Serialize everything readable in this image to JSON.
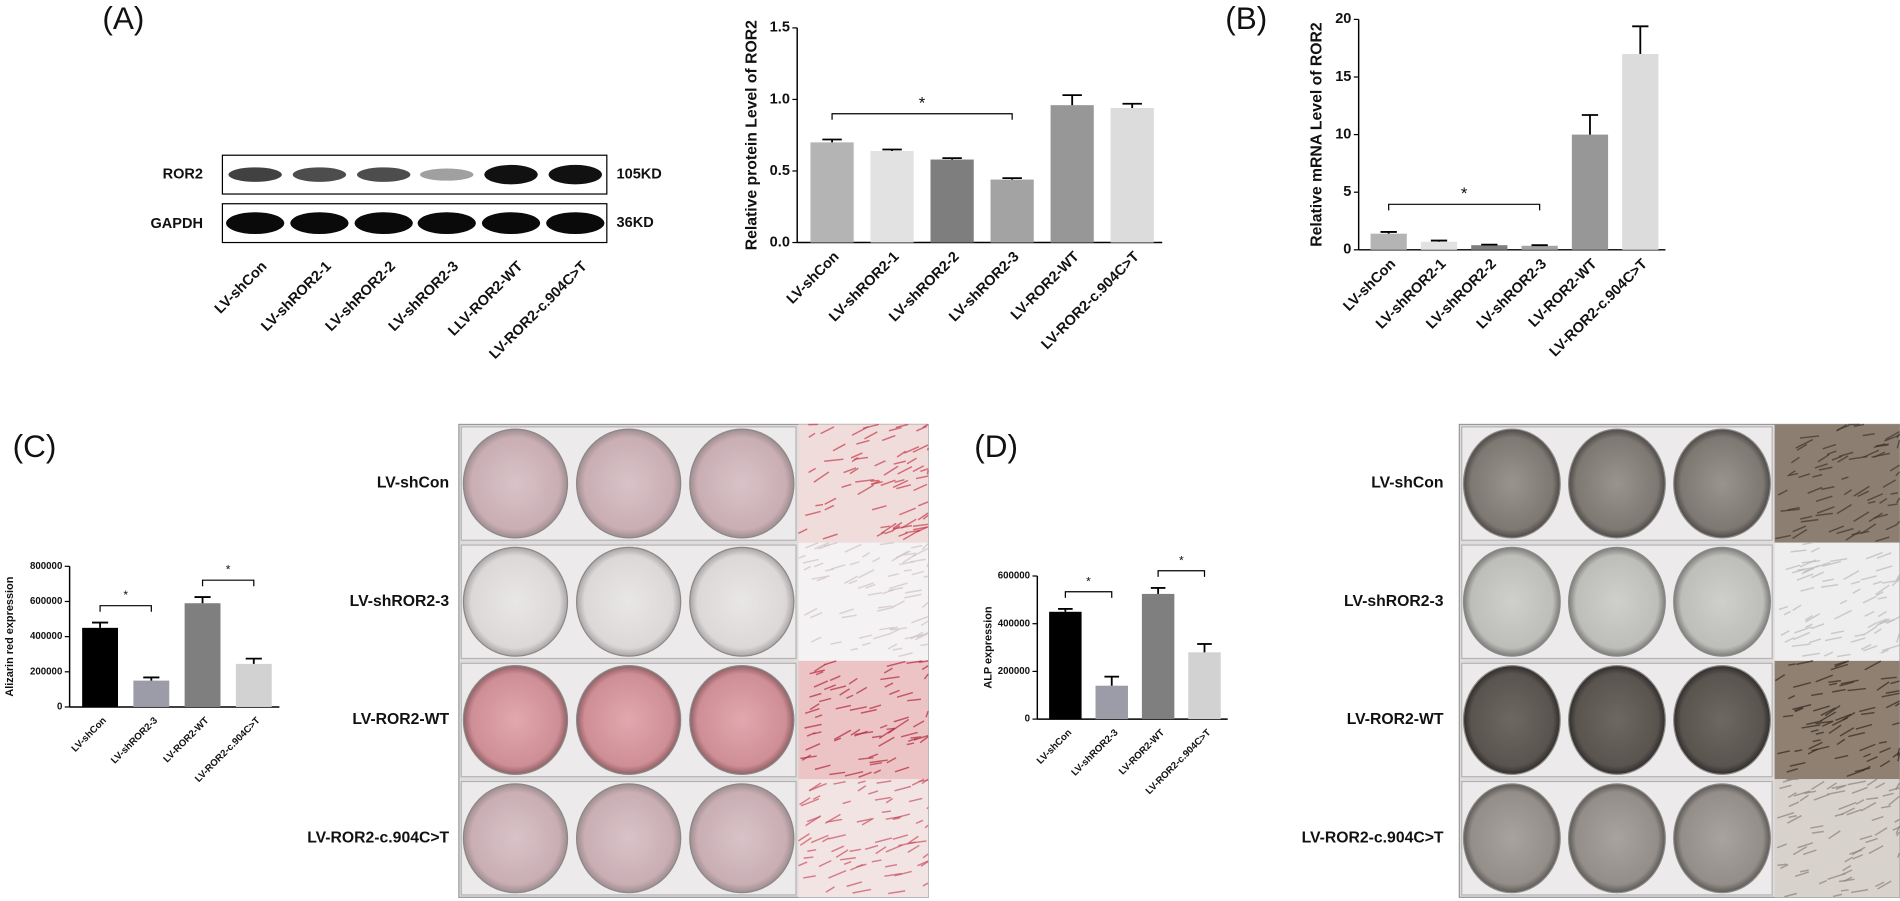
{
  "panels": [
    "(A)",
    "(B)",
    "(C)",
    "(D)"
  ],
  "blot": {
    "rows": [
      "ROR2",
      "GAPDH"
    ],
    "sizes": [
      "105KD",
      "36KD"
    ],
    "lanes": [
      "LV-shCon",
      "LV-shROR2-1",
      "LV-shROR2-2",
      "LV-shROR2-3",
      "LLV-ROR2-WT",
      "LV-ROR2-c.904C>T"
    ]
  },
  "plate_c": {
    "rows": [
      "LV-shCon",
      "LV-shROR2-3",
      "LV-ROR2-WT",
      "LV-ROR2-c.904C>T"
    ]
  },
  "plate_d": {
    "rows": [
      "LV-shCon",
      "LV-shROR2-3",
      "LV-ROR2-WT",
      "LV-ROR2-c.904C>T"
    ]
  },
  "chart_data": [
    {
      "type": "bar",
      "y_label": "Relative protein Level of ROR2",
      "categories": [
        "LV-shCon",
        "LV-shROR2-1",
        "LV-shROR2-2",
        "LV-shROR2-3",
        "LV-ROR2-WT",
        "LV-ROR2-c.904C>T"
      ],
      "values": [
        0.7,
        0.64,
        0.58,
        0.44,
        0.96,
        0.94
      ],
      "errors": [
        0.02,
        0.01,
        0.01,
        0.01,
        0.07,
        0.03
      ],
      "colors": [
        "#b4b4b4",
        "#e2e2e2",
        "#7e7e7e",
        "#a3a3a3",
        "#979797",
        "#dcdcdc"
      ],
      "ylim": [
        0,
        1.5
      ],
      "yticks": [
        {
          "value": 0,
          "label": "0.0"
        },
        0.5,
        {
          "value": 1,
          "label": "1.0"
        },
        1.5
      ],
      "significance": [
        {
          "from": 0,
          "to": 3,
          "label": "*"
        }
      ]
    },
    {
      "type": "bar",
      "y_label": "Relative mRNA Level of ROR2",
      "categories": [
        "LV-shCon",
        "LV-shROR2-1",
        "LV-shROR2-2",
        "LV-shROR2-3",
        "LV-ROR2-WT",
        "LV-ROR2-c.904C>T"
      ],
      "values": [
        1.4,
        0.7,
        0.4,
        0.35,
        10,
        17
      ],
      "errors": [
        0.15,
        0.1,
        0.05,
        0.05,
        1.7,
        2.4
      ],
      "colors": [
        "#b4b4b4",
        "#e2e2e2",
        "#7e7e7e",
        "#a3a3a3",
        "#979797",
        "#dcdcdc"
      ],
      "ylim": [
        0,
        20
      ],
      "yticks": [
        0,
        5,
        10,
        15,
        20
      ],
      "significance": [
        {
          "from": 0,
          "to": 3,
          "label": "*"
        }
      ]
    },
    {
      "type": "bar",
      "y_label": "Alizarin red expression",
      "categories": [
        "LV-shCon",
        "LV-shROR2-3",
        "LV-ROR2-WT",
        "LV-ROR2-c.904C>T"
      ],
      "values": [
        450000,
        150000,
        590000,
        245000
      ],
      "errors": [
        30000,
        18000,
        35000,
        30000
      ],
      "colors": [
        "#000000",
        "#9c9ca8",
        "#7f7f7f",
        "#d2d2d2"
      ],
      "ylim": [
        0,
        800000
      ],
      "yticks": [
        0,
        200000,
        400000,
        600000,
        800000
      ],
      "significance": [
        {
          "from": 0,
          "to": 1,
          "label": "*"
        },
        {
          "from": 2,
          "to": 3,
          "label": "*"
        }
      ]
    },
    {
      "type": "bar",
      "y_label": "ALP expression",
      "categories": [
        "LV-shCon",
        "LV-shROR2-3",
        "LV-ROR2-WT",
        "LV-ROR2-c.904C>T"
      ],
      "values": [
        450000,
        140000,
        525000,
        280000
      ],
      "errors": [
        12000,
        38000,
        25000,
        35000
      ],
      "colors": [
        "#000000",
        "#9c9ca8",
        "#7f7f7f",
        "#d2d2d2"
      ],
      "ylim": [
        0,
        600000
      ],
      "yticks": [
        0,
        200000,
        400000,
        600000
      ],
      "significance": [
        {
          "from": 0,
          "to": 1,
          "label": "*"
        },
        {
          "from": 2,
          "to": 3,
          "label": "*"
        }
      ]
    }
  ]
}
